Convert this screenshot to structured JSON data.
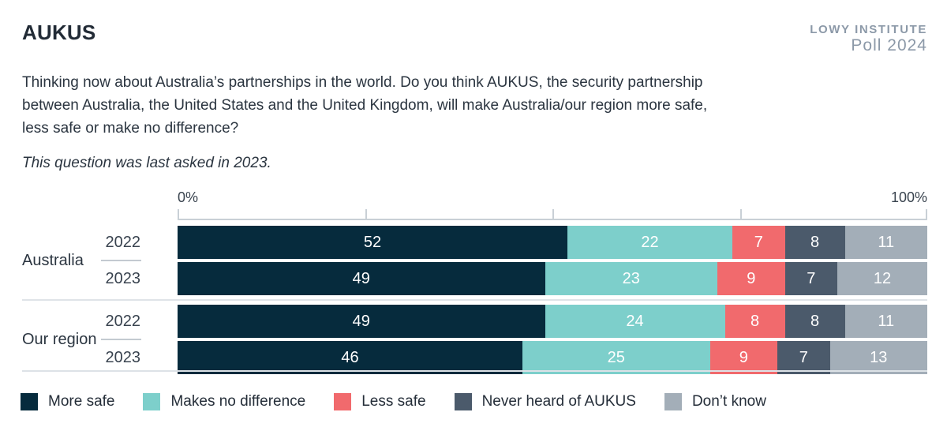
{
  "header": {
    "title": "AUKUS",
    "logo_line1": "LOWY INSTITUTE",
    "logo_line2": "Poll 2024"
  },
  "question": "Thinking now about Australia’s partnerships in the world. Do you think AUKUS, the security partnership between Australia, the United States and the United Kingdom, will make Australia/our region more safe, less safe or make no difference?",
  "note": "This question was last asked in 2023.",
  "chart_data": {
    "type": "bar",
    "stacked": true,
    "orientation": "horizontal",
    "units": "percent",
    "xlim": [
      0,
      100
    ],
    "axis": {
      "min_label": "0%",
      "max_label": "100%",
      "ticks_percent": [
        0,
        25,
        50,
        75,
        100
      ]
    },
    "legend_position": "bottom",
    "series_labels": [
      "More safe",
      "Makes no difference",
      "Less safe",
      "Never heard of AUKUS",
      "Don’t know"
    ],
    "series_colors": [
      "#062b3d",
      "#7dcfcb",
      "#f16a6d",
      "#4b5a6b",
      "#a3aeb8"
    ],
    "groups": [
      {
        "label": "Australia",
        "rows": [
          {
            "year": "2022",
            "values": [
              52,
              22,
              7,
              8,
              11
            ]
          },
          {
            "year": "2023",
            "values": [
              49,
              23,
              9,
              7,
              12
            ]
          }
        ]
      },
      {
        "label": "Our region",
        "rows": [
          {
            "year": "2022",
            "values": [
              49,
              24,
              8,
              8,
              11
            ]
          },
          {
            "year": "2023",
            "values": [
              46,
              25,
              9,
              7,
              13
            ]
          }
        ]
      }
    ]
  }
}
